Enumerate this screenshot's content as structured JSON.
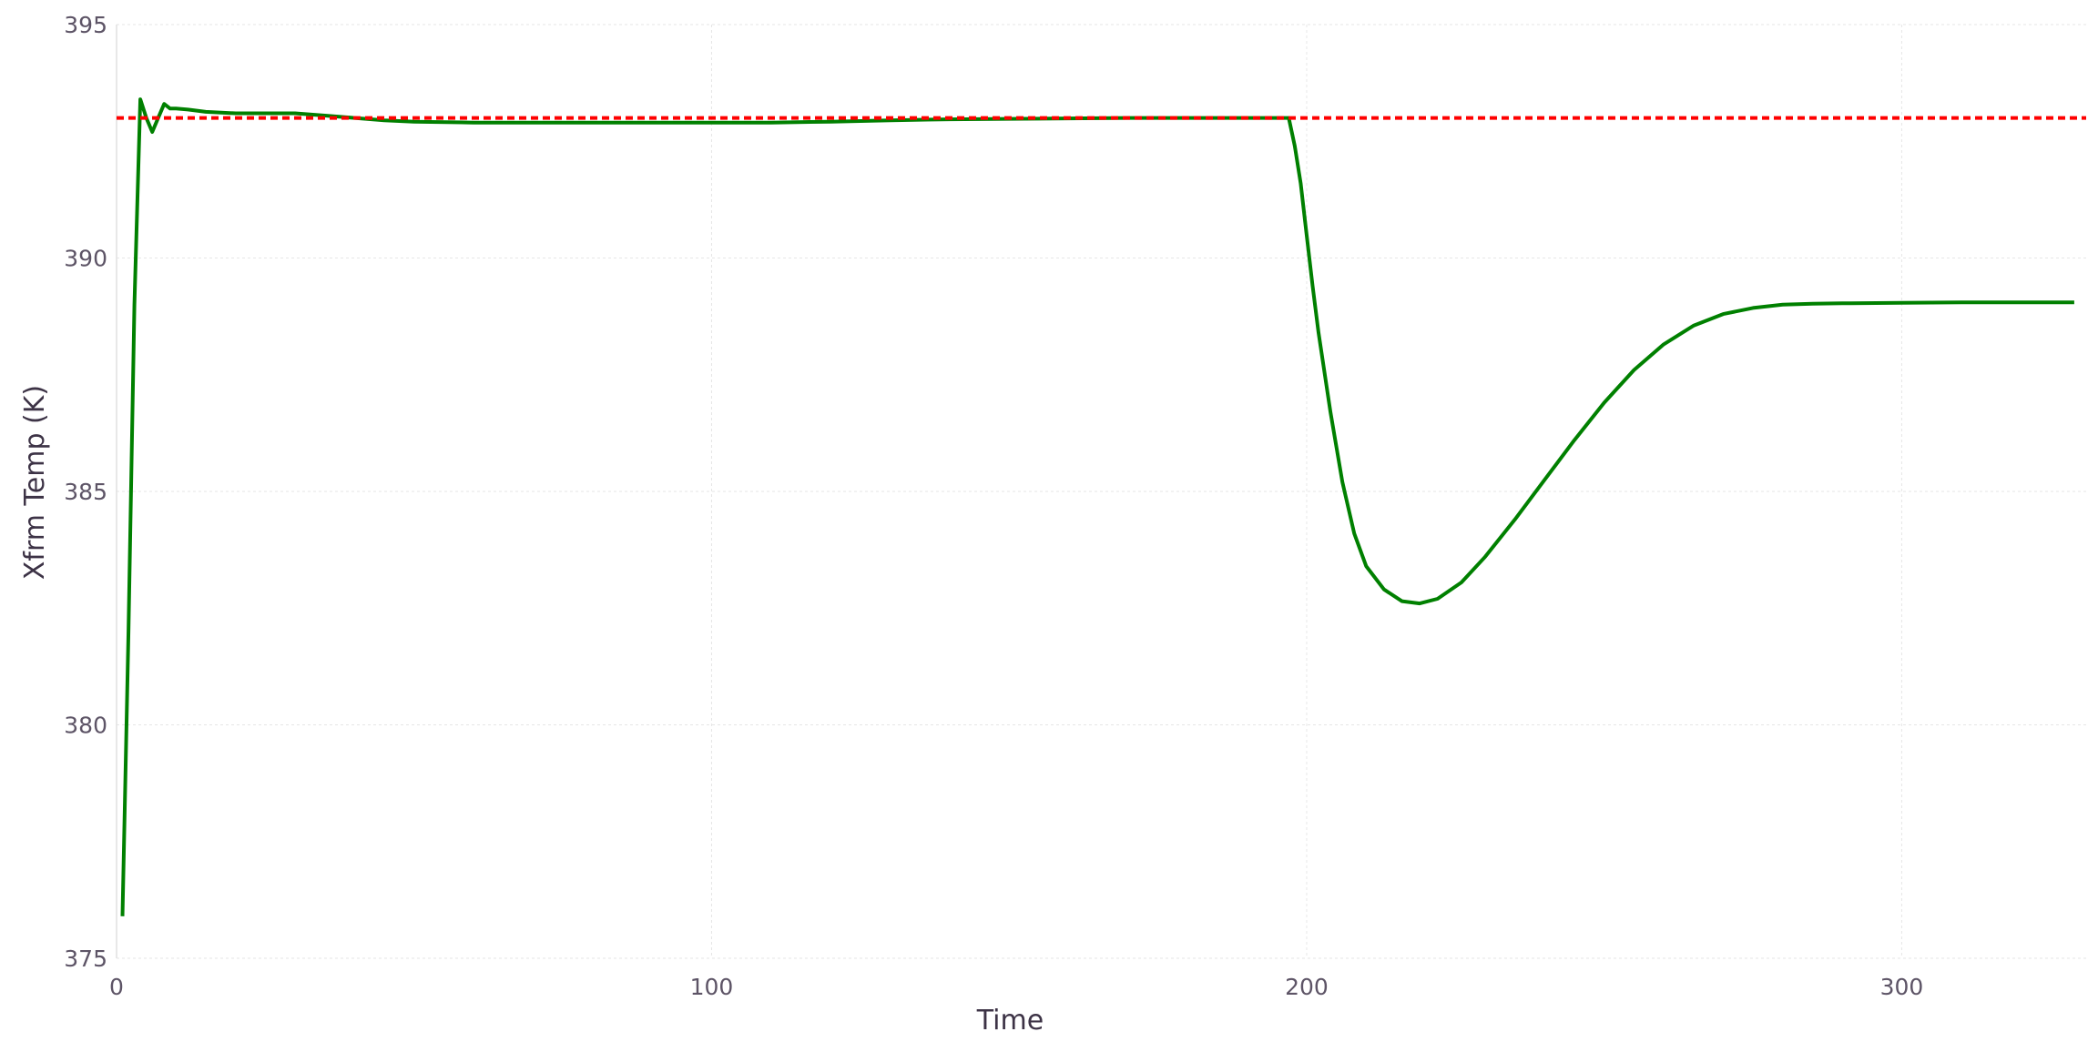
{
  "chart_data": {
    "type": "line",
    "title": "",
    "xlabel": "Time",
    "ylabel": "Xfrm Temp (K)",
    "xlim": [
      0,
      331
    ],
    "ylim": [
      375,
      395
    ],
    "xticks": [
      0,
      100,
      200,
      300
    ],
    "yticks": [
      375,
      380,
      385,
      390,
      395
    ],
    "grid": true,
    "legend": "none",
    "series": [
      {
        "color": "#008000",
        "style": "solid",
        "x": [
          1,
          2,
          3,
          4,
          5,
          6,
          7,
          8,
          9,
          10,
          12,
          15,
          20,
          25,
          30,
          35,
          40,
          45,
          50,
          60,
          70,
          80,
          90,
          100,
          110,
          120,
          130,
          140,
          150,
          160,
          170,
          180,
          190,
          197,
          198,
          199,
          200,
          201,
          202,
          204,
          206,
          208,
          210,
          213,
          216,
          219,
          222,
          226,
          230,
          235,
          240,
          245,
          250,
          255,
          260,
          265,
          270,
          275,
          280,
          285,
          290,
          300,
          310,
          320,
          329
        ],
        "y": [
          375.9,
          382.0,
          389.0,
          393.4,
          393.0,
          392.7,
          393.0,
          393.3,
          393.2,
          393.2,
          393.18,
          393.13,
          393.1,
          393.1,
          393.1,
          393.05,
          393.0,
          392.95,
          392.92,
          392.9,
          392.9,
          392.9,
          392.9,
          392.9,
          392.9,
          392.92,
          392.95,
          392.97,
          392.98,
          392.99,
          393.0,
          393.0,
          393.0,
          393.0,
          392.4,
          391.6,
          390.5,
          389.4,
          388.4,
          386.7,
          385.2,
          384.1,
          383.4,
          382.9,
          382.65,
          382.6,
          382.7,
          383.05,
          383.6,
          384.4,
          385.25,
          386.1,
          386.9,
          387.6,
          388.15,
          388.55,
          388.8,
          388.93,
          389.0,
          389.02,
          389.03,
          389.04,
          389.05,
          389.05,
          389.05
        ]
      },
      {
        "color": "#ff0000",
        "style": "dashed",
        "x": [
          0,
          331
        ],
        "y": [
          393,
          393
        ]
      }
    ]
  }
}
